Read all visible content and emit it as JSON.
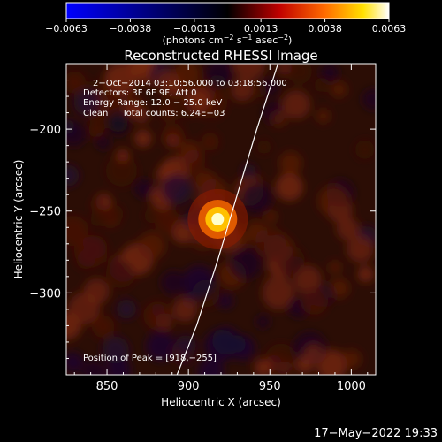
{
  "chart_data": {
    "type": "heatmap",
    "title": "Reconstructed RHESSI Image",
    "xlabel": "Heliocentric X (arcsec)",
    "ylabel": "Heliocentric Y (arcsec)",
    "xlim": [
      825,
      1015
    ],
    "ylim": [
      -350,
      -160
    ],
    "xticks": [
      850,
      900,
      950,
      1000
    ],
    "yticks": [
      -200,
      -250,
      -300
    ],
    "grid": false,
    "colorbar": {
      "placement": "top",
      "min": -0.0063,
      "max": 0.0063,
      "ticks": [
        -0.0063,
        -0.0038,
        -0.0013,
        0.0013,
        0.0038,
        0.0063
      ],
      "tick_labels": [
        "−0.0063",
        "−0.0038",
        "−0.0013",
        "0.0013",
        "0.0038",
        "0.0063"
      ],
      "unit_prefix": "(photons cm",
      "unit_sup1": "−2",
      "unit_mid": " s",
      "unit_sup2": "−1",
      "unit_mid2": " asec",
      "unit_sup3": "−2",
      "unit_suffix": ")",
      "colormap": [
        "#0000ff",
        "#000000",
        "#ff0000",
        "#ffff00",
        "#ffffff"
      ]
    },
    "annotations": [
      "2−Oct−2014 03:10:56.000 to 03:18:56.000",
      "Detectors: 3F 6F 9F, Att 0",
      "Energy Range: 12.0 − 25.0 keV",
      "Clean     Total counts: 6.24E+03"
    ],
    "peak_label": "Position of Peak = [918,−255]",
    "peak": {
      "x": 918,
      "y": -255,
      "value": 0.0063
    },
    "limb_curve": [
      [
        893,
        -350
      ],
      [
        905,
        -320
      ],
      [
        918,
        -280
      ],
      [
        930,
        -240
      ],
      [
        942,
        -200
      ],
      [
        955,
        -160
      ]
    ],
    "timestamp": "17−May−2022 19:33"
  },
  "tick_text": {
    "x": [
      "850",
      "900",
      "950",
      "1000"
    ],
    "y": [
      "−200",
      "−250",
      "−300"
    ]
  }
}
